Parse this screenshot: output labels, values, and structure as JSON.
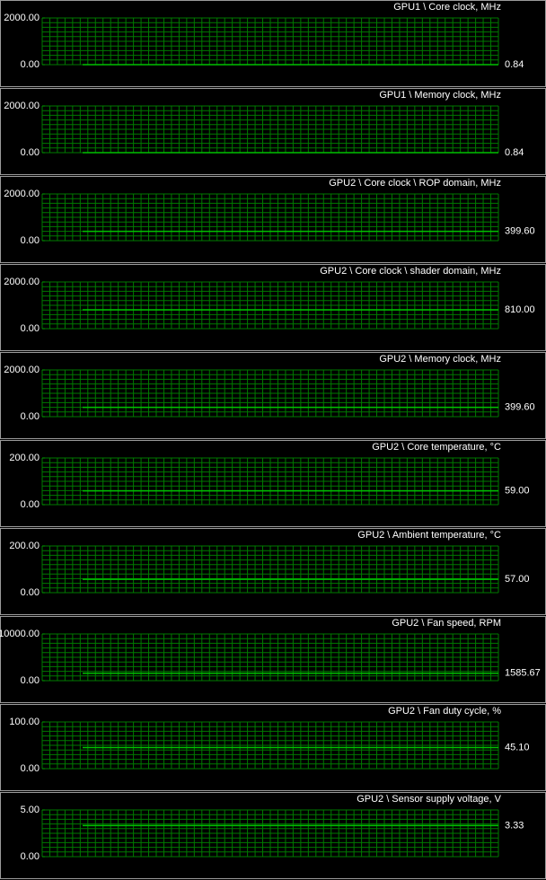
{
  "chart_data": [
    {
      "type": "line",
      "title": "GPU1 \\ Core clock, MHz",
      "ylim": [
        0,
        2000
      ],
      "yticks": [
        {
          "value": 0,
          "label": "0.00"
        },
        {
          "value": 2000,
          "label": "2000.00"
        }
      ],
      "values": [
        0.84
      ],
      "value_labels": [
        "0.84"
      ],
      "color": "#00c000"
    },
    {
      "type": "line",
      "title": "GPU1 \\ Memory clock, MHz",
      "ylim": [
        0,
        2000
      ],
      "yticks": [
        {
          "value": 0,
          "label": "0.00"
        },
        {
          "value": 2000,
          "label": "2000.00"
        }
      ],
      "values": [
        0.84
      ],
      "value_labels": [
        "0.84"
      ],
      "color": "#00c000"
    },
    {
      "type": "line",
      "title": "GPU2 \\ Core clock \\ ROP domain, MHz",
      "ylim": [
        0,
        2000
      ],
      "yticks": [
        {
          "value": 0,
          "label": "0.00"
        },
        {
          "value": 2000,
          "label": "2000.00"
        }
      ],
      "values": [
        399.6
      ],
      "value_labels": [
        "399.60"
      ],
      "color": "#00c000"
    },
    {
      "type": "line",
      "title": "GPU2 \\ Core clock \\ shader domain, MHz",
      "ylim": [
        0,
        2000
      ],
      "yticks": [
        {
          "value": 0,
          "label": "0.00"
        },
        {
          "value": 2000,
          "label": "2000.00"
        }
      ],
      "values": [
        810
      ],
      "value_labels": [
        "810.00"
      ],
      "color": "#00c000"
    },
    {
      "type": "line",
      "title": "GPU2 \\ Memory clock, MHz",
      "ylim": [
        0,
        2000
      ],
      "yticks": [
        {
          "value": 0,
          "label": "0.00"
        },
        {
          "value": 2000,
          "label": "2000.00"
        }
      ],
      "values": [
        399.6
      ],
      "value_labels": [
        "399.60"
      ],
      "color": "#00c000"
    },
    {
      "type": "line",
      "title": "GPU2 \\ Core temperature, °C",
      "ylim": [
        0,
        200
      ],
      "yticks": [
        {
          "value": 0,
          "label": "0.00"
        },
        {
          "value": 200,
          "label": "200.00"
        }
      ],
      "values": [
        59
      ],
      "value_labels": [
        "59.00"
      ],
      "color": "#00c000"
    },
    {
      "type": "line",
      "title": "GPU2 \\ Ambient temperature, °C",
      "ylim": [
        0,
        200
      ],
      "yticks": [
        {
          "value": 0,
          "label": "0.00"
        },
        {
          "value": 200,
          "label": "200.00"
        }
      ],
      "values": [
        57
      ],
      "value_labels": [
        "57.00"
      ],
      "color": "#00c000"
    },
    {
      "type": "line",
      "title": "GPU2 \\ Fan speed, RPM",
      "ylim": [
        0,
        10000
      ],
      "yticks": [
        {
          "value": 0,
          "label": "0.00"
        },
        {
          "value": 10000,
          "label": "10000.00"
        }
      ],
      "values": [
        1585.67
      ],
      "value_labels": [
        "1585.67"
      ],
      "color": "#00c000"
    },
    {
      "type": "line",
      "title": "GPU2 \\ Fan duty cycle, %",
      "ylim": [
        0,
        100
      ],
      "yticks": [
        {
          "value": 0,
          "label": "0.00"
        },
        {
          "value": 100,
          "label": "100.00"
        }
      ],
      "values": [
        45.1
      ],
      "value_labels": [
        "45.10"
      ],
      "color": "#00c000"
    },
    {
      "type": "line",
      "title": "GPU2 \\ Sensor supply voltage, V",
      "ylim": [
        0,
        5
      ],
      "yticks": [
        {
          "value": 0,
          "label": "0.00"
        },
        {
          "value": 5,
          "label": "5.00"
        }
      ],
      "values": [
        3.33
      ],
      "value_labels": [
        "3.33"
      ],
      "color": "#00c000"
    }
  ]
}
